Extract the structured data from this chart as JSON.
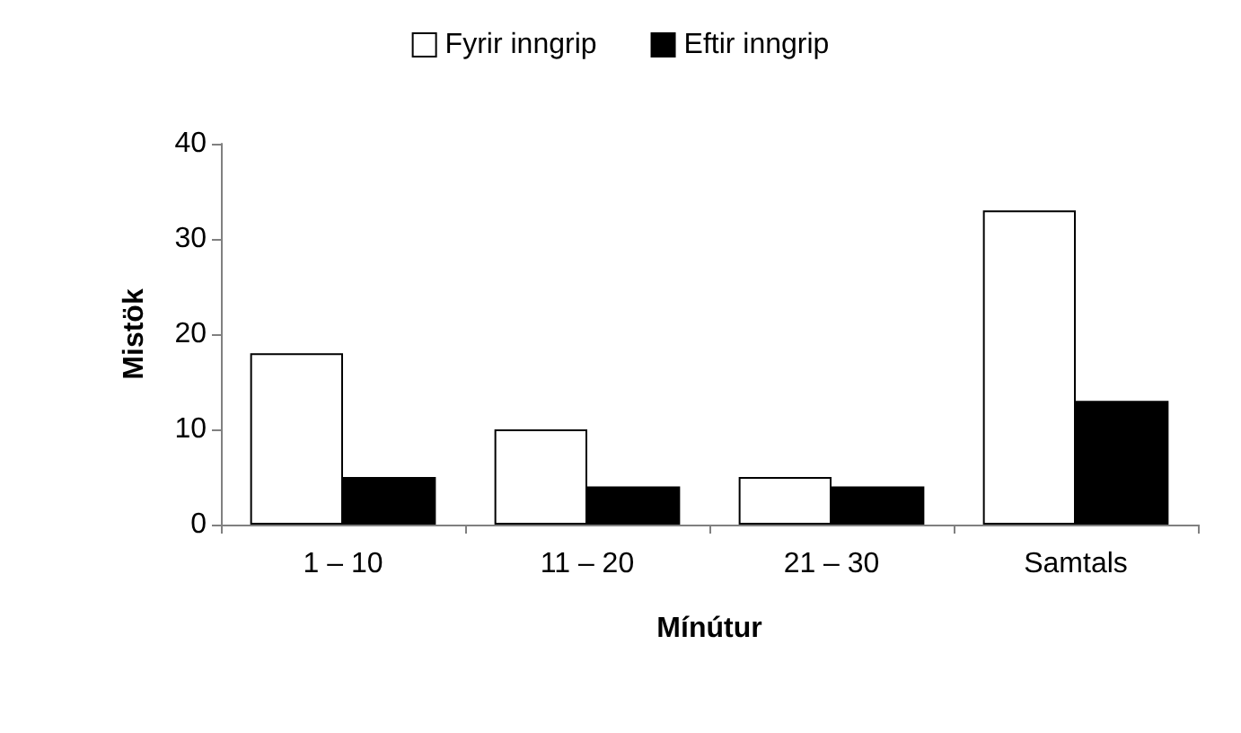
{
  "chart_data": {
    "type": "bar",
    "xlabel": "Mínútur",
    "ylabel": "Mistök",
    "categories": [
      "1 – 10",
      "11 – 20",
      "21 – 30",
      "Samtals"
    ],
    "series": [
      {
        "name": "Fyrir inngrip",
        "color": "#ffffff",
        "values": [
          18,
          10,
          5,
          33
        ]
      },
      {
        "name": "Eftir inngrip",
        "color": "#000000",
        "values": [
          5,
          4,
          4,
          13
        ]
      }
    ],
    "ylim": [
      0,
      40
    ],
    "yticks": [
      0,
      10,
      20,
      30,
      40
    ],
    "grid": false,
    "legend": "top"
  }
}
